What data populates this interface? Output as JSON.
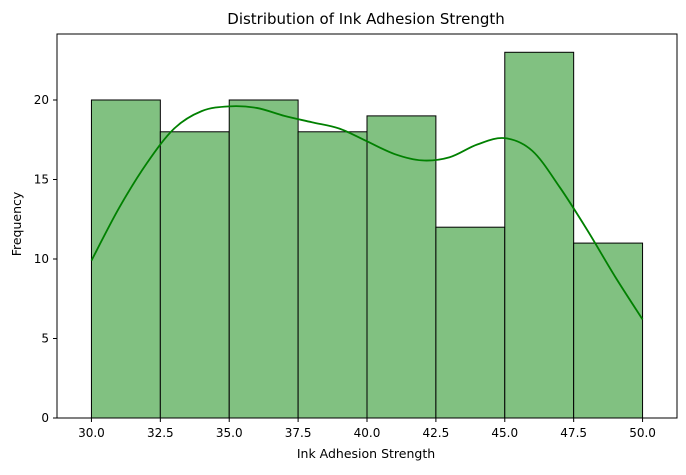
{
  "chart_data": {
    "type": "bar",
    "title": "Distribution of Ink Adhesion Strength",
    "xlabel": "Ink Adhesion Strength",
    "ylabel": "Frequency",
    "xlim": [
      28.75,
      51.25
    ],
    "ylim": [
      0,
      24.15
    ],
    "x_ticks": [
      "30.0",
      "32.5",
      "35.0",
      "37.5",
      "40.0",
      "42.5",
      "45.0",
      "47.5",
      "50.0"
    ],
    "y_ticks": [
      "0",
      "5",
      "10",
      "15",
      "20"
    ],
    "bins": [
      {
        "start": 30.0,
        "end": 32.5,
        "count": 20
      },
      {
        "start": 32.5,
        "end": 35.0,
        "count": 18
      },
      {
        "start": 35.0,
        "end": 37.5,
        "count": 20
      },
      {
        "start": 37.5,
        "end": 40.0,
        "count": 18
      },
      {
        "start": 40.0,
        "end": 42.5,
        "count": 19
      },
      {
        "start": 42.5,
        "end": 45.0,
        "count": 12
      },
      {
        "start": 45.0,
        "end": 47.5,
        "count": 23
      },
      {
        "start": 47.5,
        "end": 50.0,
        "count": 11
      }
    ],
    "kde": {
      "x": [
        30.0,
        31.0,
        32.0,
        33.0,
        34.0,
        35.0,
        36.0,
        37.0,
        38.0,
        39.0,
        40.0,
        41.0,
        42.0,
        43.0,
        44.0,
        45.0,
        46.0,
        47.0,
        48.0,
        49.0,
        50.0
      ],
      "y": [
        9.9,
        13.2,
        16.0,
        18.2,
        19.3,
        19.6,
        19.5,
        19.0,
        18.6,
        18.2,
        17.4,
        16.6,
        16.2,
        16.4,
        17.2,
        17.6,
        16.8,
        14.5,
        11.8,
        8.9,
        6.2
      ]
    },
    "grid": false,
    "colors": {
      "bar_fill": "#81c181",
      "bar_edge": "#000000",
      "kde_line": "#008000"
    }
  }
}
